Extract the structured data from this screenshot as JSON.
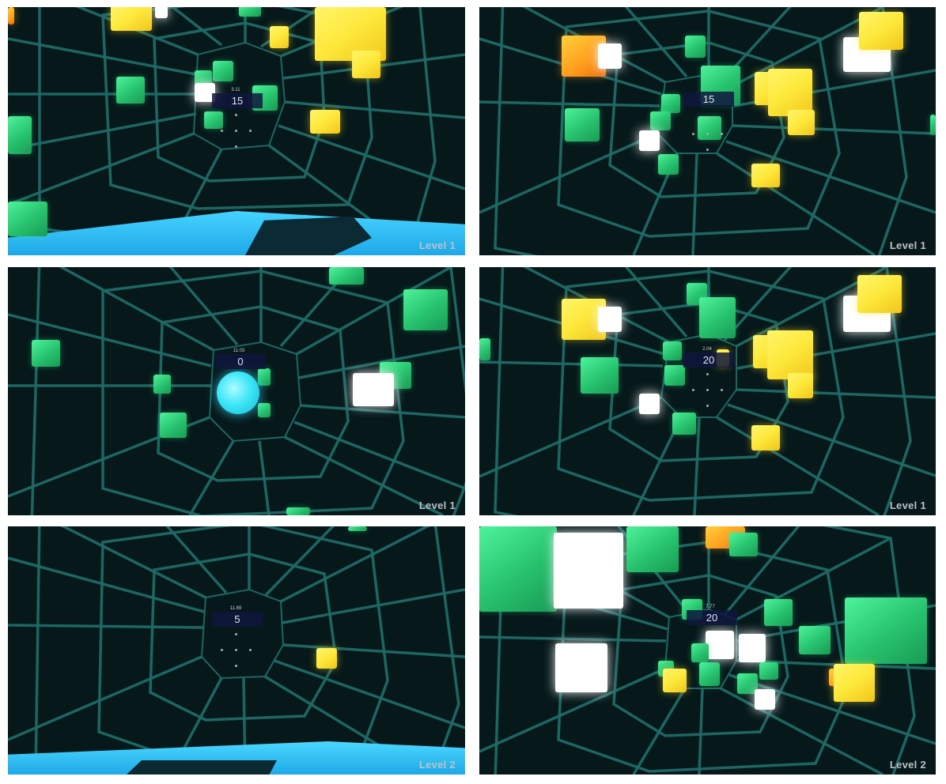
{
  "screenshots": [
    {
      "id": "tl",
      "timer": "3.11",
      "score": "15",
      "level": "Level 1"
    },
    {
      "id": "tr",
      "timer": "",
      "score": "15",
      "level": "Level 1"
    },
    {
      "id": "ml",
      "timer": "11.03",
      "score": "0",
      "level": "Level 1"
    },
    {
      "id": "mr",
      "timer": "2.04",
      "score": "20",
      "level": "Level 1"
    },
    {
      "id": "bl",
      "timer": "11.69",
      "score": "5",
      "level": "Level 2"
    },
    {
      "id": "br",
      "timer": "7.77",
      "score": "20",
      "level": "Level 2"
    }
  ],
  "colors": {
    "background": "#06181a",
    "grid": "#1f6a66",
    "cube_green": "#2bd57a",
    "cube_yellow": "#fde83b",
    "cube_orange": "#ff9d1e",
    "cube_white": "#ffffff",
    "floor_cyan": "#29b9ef",
    "orb_cyan": "#3ee7f7",
    "score_box": "#10163e",
    "level_text": "#bcc3c8"
  }
}
